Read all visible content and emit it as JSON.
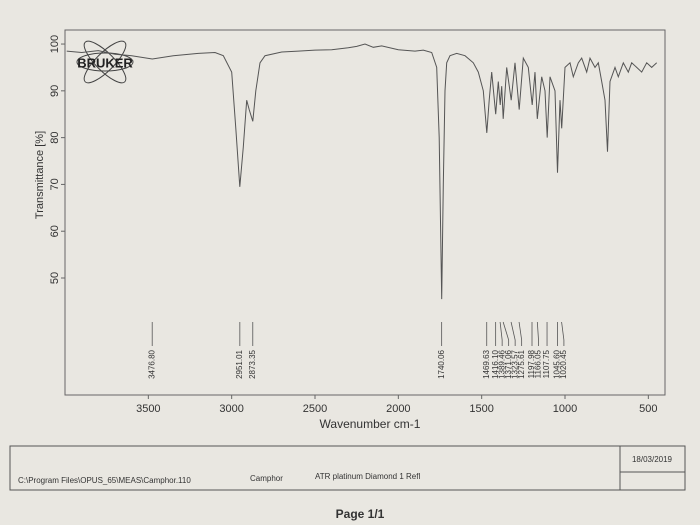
{
  "logo": "BRUKER",
  "chart_data": {
    "type": "line",
    "ylabel": "Transmittance [%]",
    "xlabel": "Wavenumber cm-1",
    "color": "#555555",
    "xlim": [
      4000,
      400
    ],
    "ylim": [
      25,
      103
    ],
    "xticks": [
      3500,
      3000,
      2500,
      2000,
      1500,
      1000,
      500
    ],
    "yticks": [
      50,
      60,
      70,
      80,
      90,
      100
    ],
    "x": [
      3990,
      3900,
      3800,
      3700,
      3600,
      3476,
      3350,
      3200,
      3100,
      3050,
      3000,
      2975,
      2951,
      2930,
      2910,
      2895,
      2873,
      2855,
      2830,
      2800,
      2700,
      2600,
      2500,
      2400,
      2300,
      2250,
      2200,
      2150,
      2100,
      2000,
      1900,
      1850,
      1800,
      1770,
      1755,
      1740,
      1730,
      1720,
      1710,
      1690,
      1650,
      1600,
      1550,
      1520,
      1490,
      1469,
      1455,
      1440,
      1416,
      1400,
      1389,
      1380,
      1371,
      1350,
      1323,
      1300,
      1275,
      1250,
      1220,
      1197,
      1180,
      1166,
      1140,
      1120,
      1107,
      1090,
      1060,
      1045,
      1030,
      1020,
      1000,
      970,
      950,
      920,
      900,
      870,
      850,
      820,
      800,
      780,
      760,
      745,
      730,
      700,
      680,
      650,
      620,
      600,
      570,
      540,
      510,
      480,
      450
    ],
    "values": [
      98.5,
      98.2,
      98.6,
      97.8,
      97.5,
      96.8,
      97.5,
      98,
      98.2,
      97.5,
      94,
      82,
      69.5,
      78,
      88,
      86,
      83.5,
      90,
      96,
      97.5,
      98.3,
      98.5,
      98.7,
      98.8,
      99.2,
      99.5,
      100,
      99.3,
      99.6,
      98.8,
      98.5,
      98.7,
      98.2,
      95,
      80,
      45.5,
      70,
      90,
      96,
      97.5,
      98,
      97.5,
      96,
      94,
      90,
      81,
      88,
      94,
      85,
      92,
      87,
      91,
      84,
      95,
      88,
      96,
      86,
      97,
      95,
      87,
      94,
      84,
      93,
      90,
      80,
      93,
      90,
      72.5,
      88,
      82,
      95,
      96,
      93,
      96,
      97,
      94,
      97,
      95,
      96,
      92,
      88,
      77,
      92,
      95,
      93,
      96,
      94,
      96,
      95,
      94,
      96,
      95,
      96
    ],
    "peak_labels": [
      {
        "value": 3476.8,
        "label": "3476.80"
      },
      {
        "value": 2951.01,
        "label": "2951.01"
      },
      {
        "value": 2873.35,
        "label": "2873.35"
      },
      {
        "value": 1740.06,
        "label": "1740.06"
      },
      {
        "value": 1469.63,
        "label": "1469.63"
      },
      {
        "value": 1416.1,
        "label": "1416.10"
      },
      {
        "value": 1389.46,
        "label": "1389.46"
      },
      {
        "value": 1371.06,
        "label": "1371.06"
      },
      {
        "value": 1323.57,
        "label": "1323.57"
      },
      {
        "value": 1275.61,
        "label": "1275.61"
      },
      {
        "value": 1197.98,
        "label": "1197.98"
      },
      {
        "value": 1166.05,
        "label": "1166.05"
      },
      {
        "value": 1107.75,
        "label": "1107.75"
      },
      {
        "value": 1045.6,
        "label": "1045.60"
      },
      {
        "value": 1020.45,
        "label": "1020.45"
      }
    ]
  },
  "footer": {
    "path": "C:\\Program Files\\OPUS_65\\MEAS\\Camphor.110",
    "sample": "Camphor",
    "method": "ATR platinum Diamond 1 Refl",
    "date": "18/03/2019"
  },
  "page": "Page 1/1"
}
